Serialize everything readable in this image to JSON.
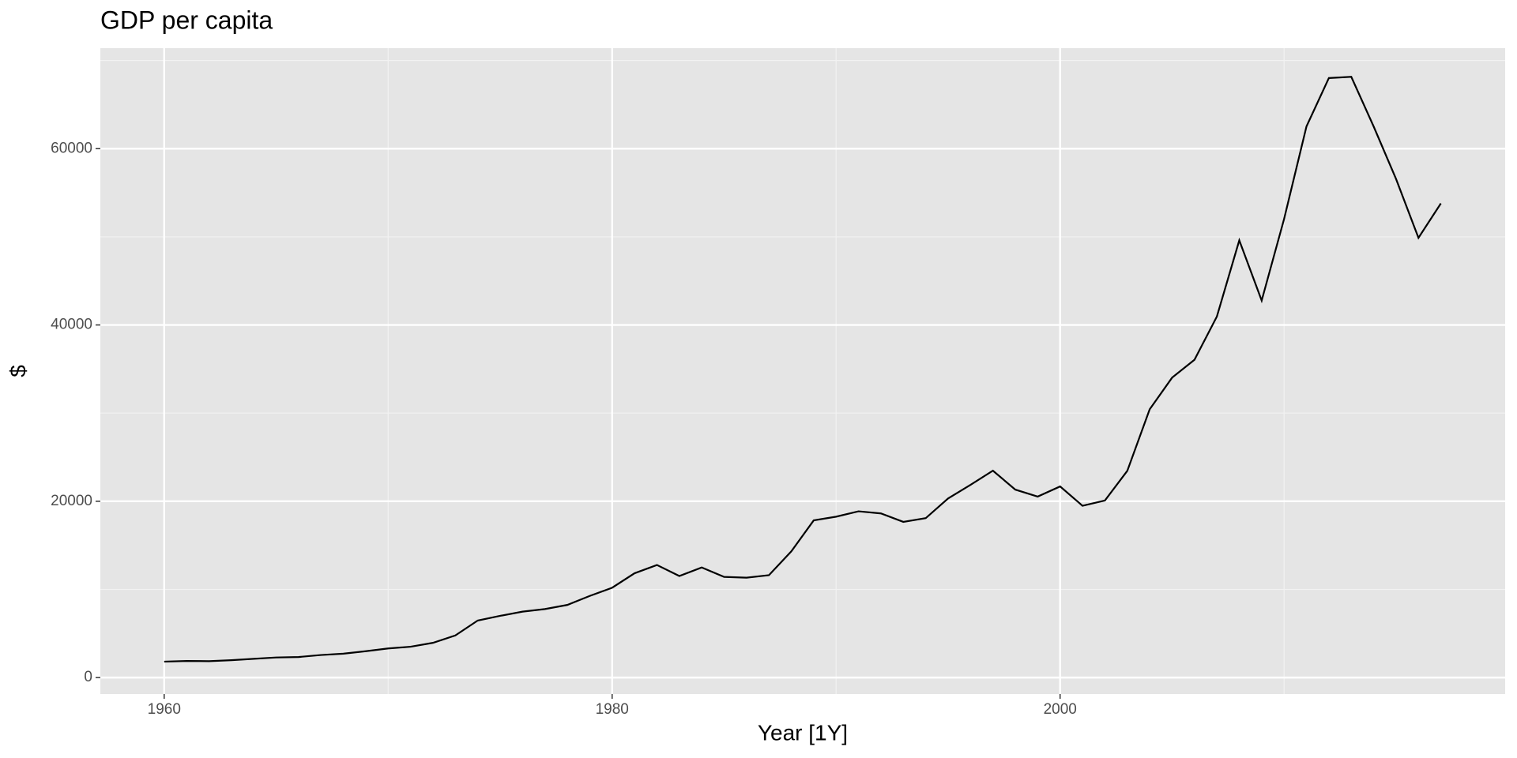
{
  "chart_data": {
    "type": "line",
    "title": "GDP per capita",
    "x_label": "Year [1Y]",
    "y_label": "$",
    "x": [
      1960,
      1961,
      1962,
      1963,
      1964,
      1965,
      1966,
      1967,
      1968,
      1969,
      1970,
      1971,
      1972,
      1973,
      1974,
      1975,
      1976,
      1977,
      1978,
      1979,
      1980,
      1981,
      1982,
      1983,
      1984,
      1985,
      1986,
      1987,
      1988,
      1989,
      1990,
      1991,
      1992,
      1993,
      1994,
      1995,
      1996,
      1997,
      1998,
      1999,
      2000,
      2001,
      2002,
      2003,
      2004,
      2005,
      2006,
      2007,
      2008,
      2009,
      2010,
      2011,
      2012,
      2013,
      2014,
      2015,
      2016,
      2017
    ],
    "series": [
      {
        "color": "#000000",
        "values": [
          1810,
          1880,
          1860,
          1970,
          2130,
          2280,
          2330,
          2560,
          2710,
          2990,
          3300,
          3500,
          3940,
          4780,
          6470,
          7000,
          7480,
          7770,
          8240,
          9260,
          10190,
          11830,
          12770,
          11520,
          12490,
          11420,
          11330,
          11610,
          14320,
          17830,
          18250,
          18860,
          18620,
          17660,
          18080,
          20320,
          21860,
          23470,
          21320,
          20530,
          21680,
          19490,
          20080,
          23450,
          30430,
          34020,
          36050,
          40960,
          49600,
          42770,
          52020,
          62520,
          68010,
          68150,
          62510,
          56560,
          49880,
          53790
        ]
      }
    ],
    "xlim": [
      1957.15,
      2019.87
    ],
    "xticks": [
      1960,
      1980,
      2000
    ],
    "minor_xticks": [
      1970,
      1990,
      2010
    ],
    "ylim": [
      -1870,
      71400
    ],
    "yticks": [
      0,
      20000,
      40000,
      60000
    ],
    "minor_yticks": [
      10000,
      30000,
      50000,
      70000
    ],
    "grid": true
  }
}
